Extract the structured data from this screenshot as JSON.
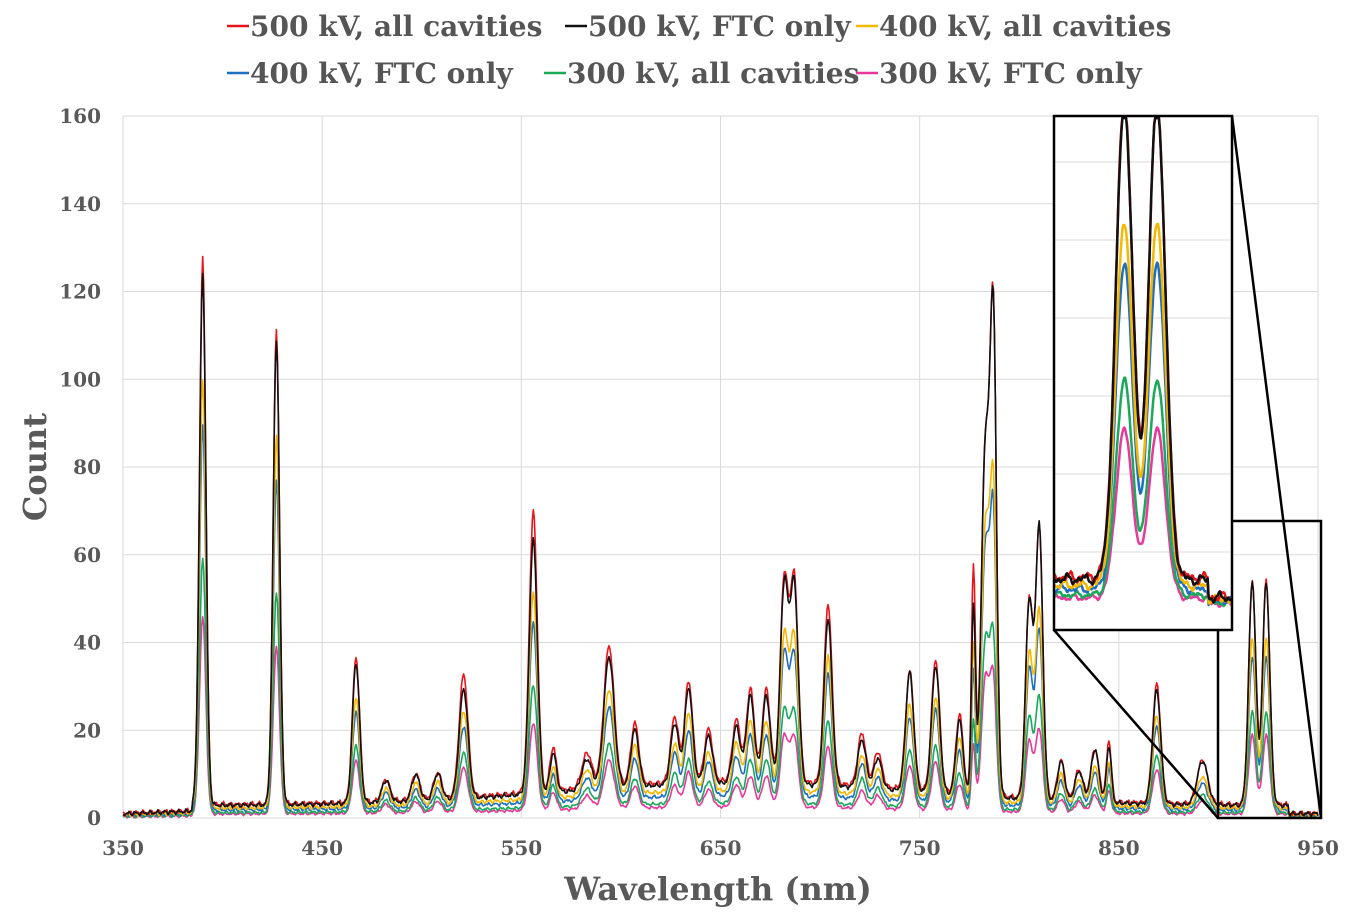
{
  "chart_data": {
    "type": "line",
    "title": "",
    "xlabel": "Wavelength (nm)",
    "ylabel": "Count",
    "xlim": [
      350,
      950
    ],
    "ylim": [
      0,
      160
    ],
    "xticks": [
      350,
      450,
      550,
      650,
      750,
      850,
      950
    ],
    "xtick_labels": [
      "350",
      "450",
      "550",
      "650",
      "750",
      "850",
      "950"
    ],
    "yticks": [
      0,
      20,
      40,
      60,
      80,
      100,
      120,
      140,
      160
    ],
    "ytick_labels": [
      "0",
      "20",
      "40",
      "60",
      "80",
      "100",
      "120",
      "140",
      "160"
    ],
    "grid": true,
    "legend_position": "top",
    "peaks": [
      {
        "x": 390,
        "w": 1.6,
        "s": [
          124.5,
          121,
          98,
          88,
          58,
          45
        ]
      },
      {
        "x": 427,
        "w": 1.6,
        "s": [
          108,
          106,
          85,
          75,
          50,
          38
        ]
      },
      {
        "x": 467,
        "w": 1.8,
        "s": [
          33,
          32,
          25,
          22,
          15,
          12
        ]
      },
      {
        "x": 482,
        "w": 2.0,
        "s": [
          5,
          5,
          4,
          3.5,
          2.5,
          2
        ]
      },
      {
        "x": 497,
        "w": 2.0,
        "s": [
          6,
          6,
          5,
          4,
          3,
          2.5
        ]
      },
      {
        "x": 508,
        "w": 2.0,
        "s": [
          6,
          6,
          5,
          4,
          3,
          2.5
        ]
      },
      {
        "x": 521,
        "w": 2.2,
        "s": [
          28,
          25,
          21,
          18,
          13,
          10
        ]
      },
      {
        "x": 556,
        "w": 2.0,
        "s": [
          64,
          58,
          47,
          41,
          28,
          20
        ]
      },
      {
        "x": 566,
        "w": 1.6,
        "s": [
          10,
          9,
          7,
          6,
          5,
          4
        ]
      },
      {
        "x": 583,
        "w": 2.5,
        "s": [
          8,
          7,
          6,
          5,
          4,
          3
        ]
      },
      {
        "x": 594,
        "w": 2.6,
        "s": [
          32,
          30,
          24,
          21,
          14,
          11
        ]
      },
      {
        "x": 607,
        "w": 2.0,
        "s": [
          14,
          13,
          11,
          9,
          6,
          5
        ]
      },
      {
        "x": 627,
        "w": 2.0,
        "s": [
          15,
          14,
          11,
          10,
          7,
          5
        ]
      },
      {
        "x": 634,
        "w": 2.0,
        "s": [
          23,
          22,
          18,
          15,
          10,
          8
        ]
      },
      {
        "x": 644,
        "w": 2.0,
        "s": [
          12,
          11,
          9,
          8,
          5,
          4
        ]
      },
      {
        "x": 658,
        "w": 2.0,
        "s": [
          14,
          13,
          11,
          9,
          6,
          5
        ]
      },
      {
        "x": 665,
        "w": 2.0,
        "s": [
          21,
          20,
          16,
          14,
          10,
          7
        ]
      },
      {
        "x": 673,
        "w": 2.0,
        "s": [
          21,
          20,
          16,
          14,
          10,
          7
        ]
      },
      {
        "x": 682,
        "w": 2.0,
        "s": [
          46,
          45,
          35,
          32,
          21,
          16
        ]
      },
      {
        "x": 687,
        "w": 2.0,
        "s": [
          46,
          45,
          35,
          32,
          21,
          16
        ]
      },
      {
        "x": 704,
        "w": 2.0,
        "s": [
          41,
          38,
          31,
          28,
          19,
          14
        ]
      },
      {
        "x": 721,
        "w": 2.0,
        "s": [
          12,
          11,
          9,
          8,
          6,
          4
        ]
      },
      {
        "x": 729,
        "w": 2.0,
        "s": [
          8,
          7,
          6,
          5,
          4,
          3
        ]
      },
      {
        "x": 745,
        "w": 2.0,
        "s": [
          27,
          27,
          21,
          19,
          13,
          10
        ]
      },
      {
        "x": 758,
        "w": 2.0,
        "s": [
          30,
          29,
          23,
          21,
          14,
          11
        ]
      },
      {
        "x": 770,
        "w": 1.8,
        "s": [
          18,
          17,
          14,
          12,
          8,
          6
        ]
      },
      {
        "x": 777,
        "w": 1.0,
        "s": [
          52,
          43,
          35,
          30,
          20,
          15
        ]
      },
      {
        "x": 783,
        "w": 2.0,
        "s": [
          79,
          79,
          62,
          58,
          38,
          30
        ]
      },
      {
        "x": 787,
        "w": 1.6,
        "s": [
          105,
          105,
          68,
          62,
          36,
          28
        ]
      },
      {
        "x": 805,
        "w": 1.8,
        "s": [
          45,
          45,
          34,
          31,
          21,
          16
        ]
      },
      {
        "x": 810,
        "w": 1.8,
        "s": [
          62,
          62,
          44,
          40,
          26,
          19
        ]
      },
      {
        "x": 821,
        "w": 1.8,
        "s": [
          9,
          9,
          7,
          6,
          4,
          3
        ]
      },
      {
        "x": 830,
        "w": 2.0,
        "s": [
          7,
          7,
          6,
          5,
          3,
          2.5
        ]
      },
      {
        "x": 838,
        "w": 2.0,
        "s": [
          12,
          12,
          9,
          8,
          5,
          4
        ]
      },
      {
        "x": 845,
        "w": 1.2,
        "s": [
          14,
          13,
          10,
          9,
          6,
          5
        ]
      },
      {
        "x": 869,
        "w": 2.0,
        "s": [
          27,
          26,
          21,
          19,
          13,
          10
        ]
      },
      {
        "x": 892,
        "w": 2.6,
        "s": [
          10,
          10,
          7,
          6,
          4,
          3
        ]
      },
      {
        "x": 917,
        "w": 1.8,
        "s": [
          51,
          51,
          39,
          35,
          23,
          18
        ]
      },
      {
        "x": 924,
        "w": 1.8,
        "s": [
          51,
          51,
          39,
          35,
          23,
          18
        ]
      }
    ],
    "series": [
      {
        "name": "500 kV, all cavities",
        "color": "#e8141a",
        "base": 3.0
      },
      {
        "name": "500 kV, FTC only",
        "color": "#111111",
        "base": 2.8
      },
      {
        "name": "400 kV, all cavities",
        "color": "#f5b800",
        "base": 2.2
      },
      {
        "name": "400 kV, FTC only",
        "color": "#1f6fc0",
        "base": 1.8
      },
      {
        "name": "300 kV, all cavities",
        "color": "#1aa85a",
        "base": 1.2
      },
      {
        "name": "300 kV, FTC only",
        "color": "#e8399a",
        "base": 0.9
      }
    ],
    "inset": {
      "description_range": [
        900,
        940
      ],
      "peaks_x": [
        917,
        924
      ]
    }
  }
}
